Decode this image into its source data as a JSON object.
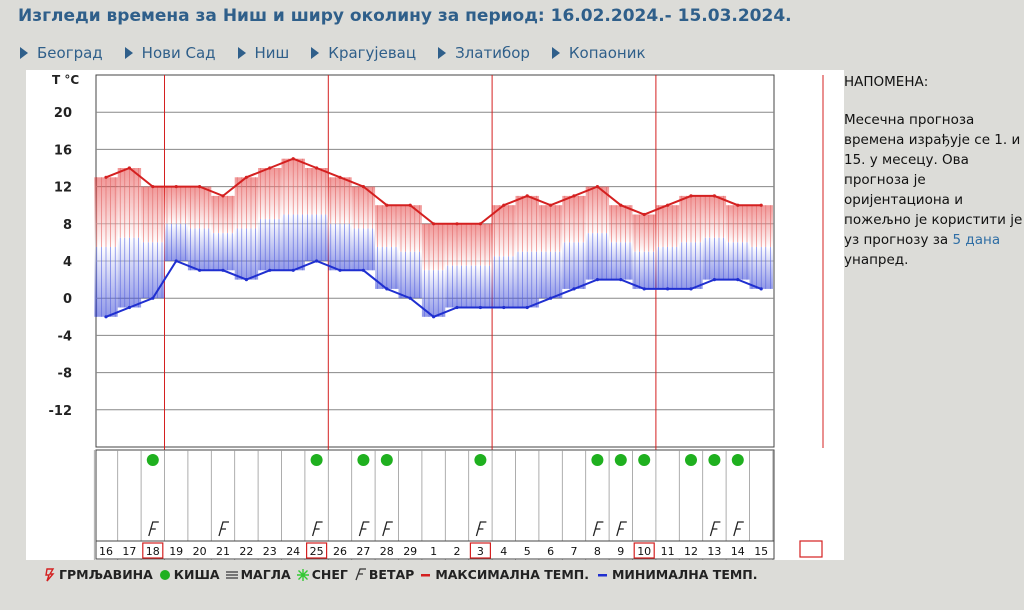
{
  "title": "Изгледи времена за Ниш и ширу околину за период: 16.02.2024.- 15.03.2024.",
  "nav": [
    {
      "label": "Београд"
    },
    {
      "label": "Нови Сад"
    },
    {
      "label": "Ниш"
    },
    {
      "label": "Крагујевац"
    },
    {
      "label": "Златибор"
    },
    {
      "label": "Копаоник"
    }
  ],
  "note": {
    "heading": "НАПОМЕНА:",
    "text_before": "Месечна прогноза времена израђује се 1. и 15. у месецу. Ова прогноза је оријентациона и пожељно је користити је уз прогнозу за ",
    "link": "5 дана",
    "text_after": " унапред."
  },
  "legend": {
    "thunder": "ГРМЉАВИНА",
    "rain": "КИША",
    "fog": "МАГЛА",
    "snow": "СНЕГ",
    "wind": "ВЕТАР",
    "max": "МАКСИМАЛНА ТЕМП.",
    "min": "МИНИМАЛНА ТЕМП."
  },
  "colors": {
    "max": "#d42020",
    "min": "#1f2fd0",
    "rain": "#1fb01f",
    "accent": "#2f5f8a"
  },
  "chart_data": {
    "type": "line",
    "title": "",
    "ylabel": "T °C",
    "ylim": [
      -16,
      24
    ],
    "yticks": [
      20,
      16,
      12,
      8,
      4,
      0,
      -4,
      -8,
      -12
    ],
    "categories": [
      "16",
      "17",
      "18",
      "19",
      "20",
      "21",
      "22",
      "23",
      "24",
      "25",
      "26",
      "27",
      "28",
      "29",
      "1",
      "2",
      "3",
      "4",
      "5",
      "6",
      "7",
      "8",
      "9",
      "10",
      "11",
      "12",
      "13",
      "14",
      "15"
    ],
    "series": [
      {
        "name": "МАКСИМАЛНА ТЕМП.",
        "values": [
          13,
          14,
          12,
          12,
          12,
          11,
          13,
          14,
          15,
          14,
          13,
          12,
          10,
          10,
          8,
          8,
          8,
          10,
          11,
          10,
          11,
          12,
          10,
          9,
          10,
          11,
          11,
          10,
          10
        ]
      },
      {
        "name": "МИНИМАЛНА ТЕМП.",
        "values": [
          -2,
          -1,
          0,
          4,
          3,
          3,
          2,
          3,
          3,
          4,
          3,
          3,
          1,
          0,
          -2,
          -1,
          -1,
          -1,
          -1,
          0,
          1,
          2,
          2,
          1,
          1,
          1,
          2,
          2,
          1
        ]
      }
    ],
    "rain_days": [
      "18",
      "25",
      "27",
      "28",
      "3",
      "8",
      "9",
      "10",
      "12",
      "13",
      "14"
    ],
    "wind_days": [
      "18",
      "21",
      "25",
      "27",
      "28",
      "3",
      "8",
      "9",
      "13",
      "14"
    ],
    "highlighted_days": [
      "18",
      "25",
      "3",
      "10"
    ],
    "red_lines_after": [
      "18",
      "25",
      "3",
      "10"
    ]
  }
}
